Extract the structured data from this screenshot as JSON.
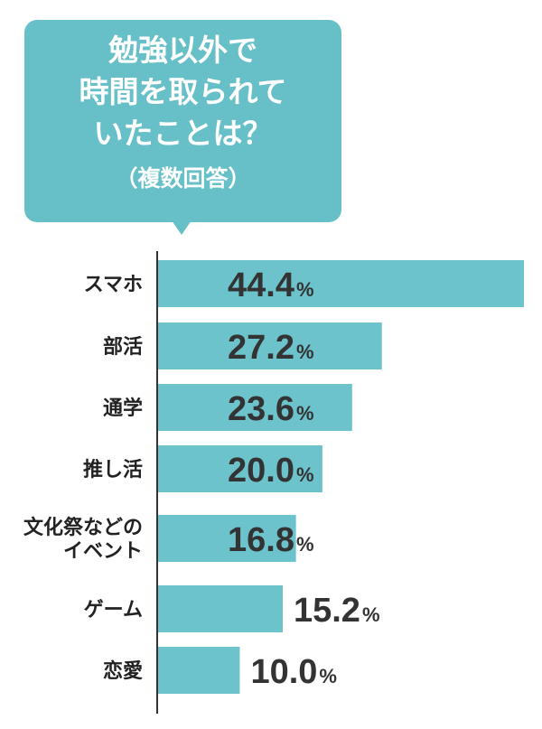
{
  "header": {
    "title_lines": [
      "勉強以外で",
      "時間を取られて",
      "いたことは？"
    ],
    "subtitle": "（複数回答）"
  },
  "colors": {
    "bar": "#6cc3cb",
    "bubble": "#67c0c8",
    "text": "#222222",
    "axis": "#333333"
  },
  "chart_data": {
    "type": "bar",
    "orientation": "horizontal",
    "title": "勉強以外で時間を取られていたことは？",
    "subtitle": "（複数回答）",
    "categories": [
      [
        "スマホ"
      ],
      [
        "部活"
      ],
      [
        "通学"
      ],
      [
        "推し活"
      ],
      [
        "文化祭などの",
        "イベント"
      ],
      [
        "ゲーム"
      ],
      [
        "恋愛"
      ]
    ],
    "values": [
      44.4,
      27.2,
      23.6,
      20.0,
      16.8,
      15.2,
      10.0
    ],
    "value_labels": [
      "44.4",
      "27.2",
      "23.6",
      "20.0",
      "16.8",
      "15.2",
      "10.0"
    ],
    "unit": "%",
    "xlim": [
      0,
      44.4
    ],
    "grid": false,
    "legend": "none"
  }
}
